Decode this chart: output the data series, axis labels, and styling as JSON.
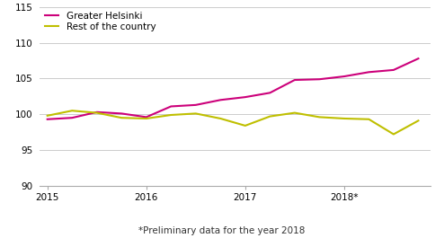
{
  "footnote": "*Preliminary data for the year 2018",
  "x_labels": [
    "2015",
    "2016",
    "2017",
    "2018*"
  ],
  "x_ticks": [
    0,
    4,
    8,
    12
  ],
  "quarters": [
    0,
    1,
    2,
    3,
    4,
    5,
    6,
    7,
    8,
    9,
    10,
    11,
    12,
    13,
    14,
    15
  ],
  "greater_helsinki": [
    99.3,
    99.5,
    100.3,
    100.1,
    99.6,
    101.1,
    101.3,
    102.0,
    102.4,
    103.0,
    104.8,
    104.9,
    105.3,
    105.9,
    106.2,
    107.8
  ],
  "rest_of_country": [
    99.8,
    100.5,
    100.2,
    99.5,
    99.4,
    99.9,
    100.1,
    99.4,
    98.4,
    99.7,
    100.2,
    99.6,
    99.4,
    99.3,
    97.2,
    99.1
  ],
  "helsinki_color": "#CC007A",
  "country_color": "#BFBF00",
  "ylim": [
    90,
    115
  ],
  "yticks": [
    90,
    95,
    100,
    105,
    110,
    115
  ],
  "legend_labels": [
    "Greater Helsinki",
    "Rest of the country"
  ],
  "line_width": 1.5,
  "bg_color": "#ffffff",
  "grid_color": "#cccccc",
  "tick_fontsize": 7.5,
  "legend_fontsize": 7.5,
  "footnote_fontsize": 7.5
}
